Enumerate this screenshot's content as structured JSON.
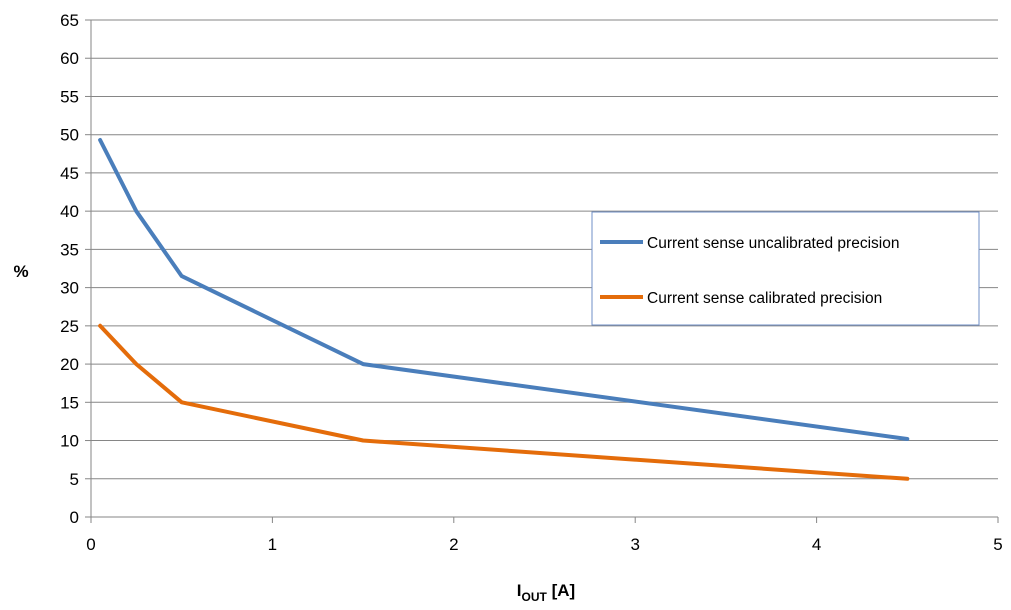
{
  "chart_data": {
    "type": "line",
    "title": "",
    "xlabel": "I",
    "xlabel_sub": "OUT",
    "xlabel_unit": " [A]",
    "ylabel": "%",
    "xlim": [
      0,
      5
    ],
    "ylim": [
      0,
      65
    ],
    "x_ticks": [
      0,
      1,
      2,
      3,
      4,
      5
    ],
    "y_ticks": [
      0,
      5,
      10,
      15,
      20,
      25,
      30,
      35,
      40,
      45,
      50,
      55,
      60,
      65
    ],
    "grid": "horizontal",
    "legend_position": "right",
    "series": [
      {
        "name": "Current sense uncalibrated precision",
        "color": "#4a7ebb",
        "x": [
          0.05,
          0.25,
          0.5,
          1.5,
          4.5
        ],
        "y": [
          49.3,
          40.0,
          31.5,
          20.0,
          10.2
        ]
      },
      {
        "name": "Current sense calibrated precision",
        "color": "#e46c0a",
        "x": [
          0.05,
          0.25,
          0.5,
          1.5,
          4.5
        ],
        "y": [
          25.0,
          20.0,
          15.0,
          10.0,
          5.0
        ]
      }
    ]
  }
}
